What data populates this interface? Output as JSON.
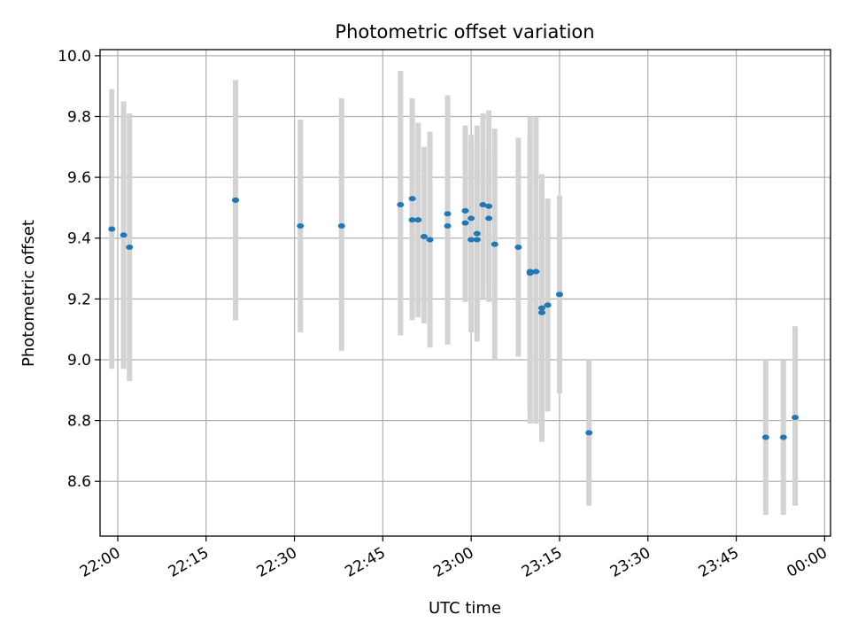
{
  "chart_data": {
    "type": "scatter",
    "title": "Photometric offset variation",
    "xlabel": "UTC time",
    "ylabel": "Photometric offset",
    "x_unit": "time of day (HH:MM, UTC)",
    "xlim": [
      "21:57",
      "00:01"
    ],
    "ylim": [
      8.42,
      10.02
    ],
    "x_ticks": [
      "22:00",
      "22:15",
      "22:30",
      "22:45",
      "23:00",
      "23:15",
      "23:30",
      "23:45",
      "00:00"
    ],
    "y_ticks": [
      "8.6",
      "8.8",
      "9.0",
      "9.2",
      "9.4",
      "9.6",
      "9.8",
      "10.0"
    ],
    "grid": true,
    "series": [
      {
        "color": "#1f77b4",
        "errorbar_color": "#d3d3d3",
        "points": [
          {
            "x": "21:59",
            "y": 9.43,
            "ylow": 8.97,
            "yhigh": 9.89
          },
          {
            "x": "22:01",
            "y": 9.41,
            "ylow": 8.97,
            "yhigh": 9.85
          },
          {
            "x": "22:02",
            "y": 9.37,
            "ylow": 8.93,
            "yhigh": 9.81
          },
          {
            "x": "22:20",
            "y": 9.525,
            "ylow": 9.13,
            "yhigh": 9.92
          },
          {
            "x": "22:20",
            "y": 9.525,
            "ylow": 9.13,
            "yhigh": 9.92
          },
          {
            "x": "22:31",
            "y": 9.44,
            "ylow": 9.09,
            "yhigh": 9.79
          },
          {
            "x": "22:38",
            "y": 9.44,
            "ylow": 9.03,
            "yhigh": 9.86
          },
          {
            "x": "22:48",
            "y": 9.51,
            "ylow": 9.08,
            "yhigh": 9.95
          },
          {
            "x": "22:50",
            "y": 9.53,
            "ylow": 9.21,
            "yhigh": 9.86
          },
          {
            "x": "22:50",
            "y": 9.46,
            "ylow": 9.13,
            "yhigh": 9.78
          },
          {
            "x": "22:51",
            "y": 9.46,
            "ylow": 9.14,
            "yhigh": 9.78
          },
          {
            "x": "22:52",
            "y": 9.405,
            "ylow": 9.12,
            "yhigh": 9.7
          },
          {
            "x": "22:53",
            "y": 9.395,
            "ylow": 9.04,
            "yhigh": 9.75
          },
          {
            "x": "22:56",
            "y": 9.48,
            "ylow": 9.1,
            "yhigh": 9.87
          },
          {
            "x": "22:56",
            "y": 9.44,
            "ylow": 9.05,
            "yhigh": 9.83
          },
          {
            "x": "22:59",
            "y": 9.45,
            "ylow": 9.21,
            "yhigh": 9.69
          },
          {
            "x": "22:59",
            "y": 9.49,
            "ylow": 9.21,
            "yhigh": 9.77
          },
          {
            "x": "22:59",
            "y": 9.49,
            "ylow": 9.19,
            "yhigh": 9.77
          },
          {
            "x": "23:00",
            "y": 9.465,
            "ylow": 9.19,
            "yhigh": 9.74
          },
          {
            "x": "23:00",
            "y": 9.395,
            "ylow": 9.09,
            "yhigh": 9.7
          },
          {
            "x": "23:01",
            "y": 9.395,
            "ylow": 9.08,
            "yhigh": 9.71
          },
          {
            "x": "23:01",
            "y": 9.415,
            "ylow": 9.06,
            "yhigh": 9.77
          },
          {
            "x": "23:02",
            "y": 9.51,
            "ylow": 9.2,
            "yhigh": 9.81
          },
          {
            "x": "23:03",
            "y": 9.505,
            "ylow": 9.19,
            "yhigh": 9.82
          },
          {
            "x": "23:03",
            "y": 9.465,
            "ylow": 9.25,
            "yhigh": 9.68
          },
          {
            "x": "23:04",
            "y": 9.38,
            "ylow": 9.0,
            "yhigh": 9.76
          },
          {
            "x": "23:08",
            "y": 9.37,
            "ylow": 9.01,
            "yhigh": 9.73
          },
          {
            "x": "23:10",
            "y": 9.285,
            "ylow": 8.84,
            "yhigh": 9.73
          },
          {
            "x": "23:10",
            "y": 9.29,
            "ylow": 8.79,
            "yhigh": 9.8
          },
          {
            "x": "23:11",
            "y": 9.29,
            "ylow": 8.79,
            "yhigh": 9.8
          },
          {
            "x": "23:12",
            "y": 9.17,
            "ylow": 8.73,
            "yhigh": 9.61
          },
          {
            "x": "23:12",
            "y": 9.155,
            "ylow": 8.75,
            "yhigh": 9.56
          },
          {
            "x": "23:13",
            "y": 9.18,
            "ylow": 8.83,
            "yhigh": 9.53
          },
          {
            "x": "23:15",
            "y": 9.215,
            "ylow": 8.89,
            "yhigh": 9.54
          },
          {
            "x": "23:20",
            "y": 8.76,
            "ylow": 8.52,
            "yhigh": 9.0
          },
          {
            "x": "23:50",
            "y": 8.745,
            "ylow": 8.49,
            "yhigh": 9.0
          },
          {
            "x": "23:53",
            "y": 8.745,
            "ylow": 8.49,
            "yhigh": 9.0
          },
          {
            "x": "23:55",
            "y": 8.81,
            "ylow": 8.52,
            "yhigh": 9.11
          }
        ]
      }
    ]
  }
}
